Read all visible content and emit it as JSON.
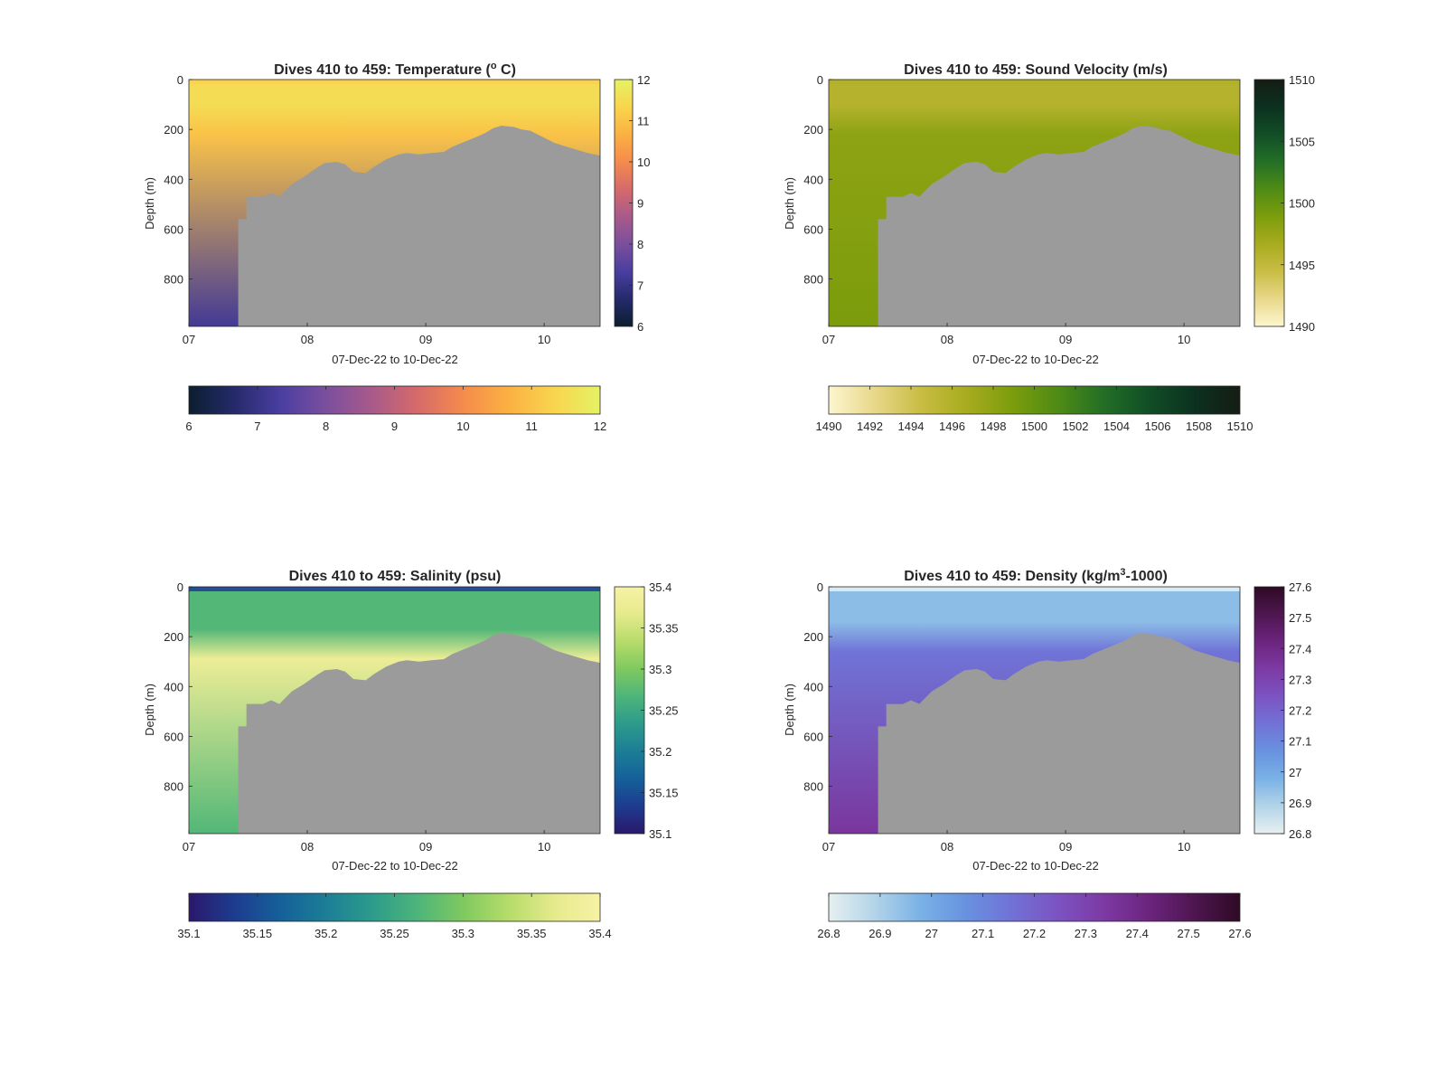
{
  "figure": {
    "background": "#ffffff",
    "mask_color": "#9b9b9b"
  },
  "chart_data": [
    {
      "type": "heatmap",
      "title_main": "Dives 410 to 459: Temperature (",
      "title_sup": "o",
      "title_end": " C)",
      "xlabel": "07-Dec-22 to 10-Dec-22",
      "ylabel": "Depth (m)",
      "x_ticks": [
        "07",
        "08",
        "09",
        "10"
      ],
      "y_ticks": [
        "0",
        "200",
        "400",
        "600",
        "800"
      ],
      "ylim": [
        0,
        990
      ],
      "colorbar_range": [
        6,
        12
      ],
      "colorbar_ticks": [
        "6",
        "7",
        "8",
        "9",
        "10",
        "11",
        "12"
      ],
      "hbar_ticks": [
        "6",
        "7",
        "8",
        "9",
        "10",
        "11",
        "12"
      ],
      "colormap": [
        "#0b1e2f",
        "#252a6b",
        "#4a3ea0",
        "#7a4f9e",
        "#a85a8a",
        "#d66a6a",
        "#f58b4c",
        "#fbb142",
        "#f9d54e",
        "#e5f264"
      ],
      "surface_value": 11.5,
      "surface_depth": 100,
      "mid_value": 11.0,
      "deep_value": 7.2,
      "surface_band": "#fbd24f"
    },
    {
      "type": "heatmap",
      "title_main": "Dives 410 to 459: Sound Velocity (m/s)",
      "title_sup": "",
      "title_end": "",
      "xlabel": "07-Dec-22 to 10-Dec-22",
      "ylabel": "Depth (m)",
      "x_ticks": [
        "07",
        "08",
        "09",
        "10"
      ],
      "y_ticks": [
        "0",
        "200",
        "400",
        "600",
        "800"
      ],
      "ylim": [
        0,
        990
      ],
      "colorbar_range": [
        1490,
        1510
      ],
      "colorbar_ticks": [
        "1490",
        "1495",
        "1500",
        "1505",
        "1510"
      ],
      "hbar_ticks": [
        "1490",
        "1492",
        "1494",
        "1496",
        "1498",
        "1500",
        "1502",
        "1504",
        "1506",
        "1508",
        "1510"
      ],
      "colormap": [
        "#fdf6cf",
        "#e8d88a",
        "#c9bd45",
        "#a8ac1e",
        "#7d9d0c",
        "#4f8b15",
        "#236f26",
        "#114e26",
        "#0c3120",
        "#151c14"
      ],
      "surface_value": 1495.8,
      "surface_depth": 100,
      "mid_value": 1498.0,
      "deep_value": 1499.0,
      "surface_band": "#b2b02a"
    },
    {
      "type": "heatmap",
      "title_main": "Dives 410 to 459: Salinity (psu)",
      "title_sup": "",
      "title_end": "",
      "xlabel": "07-Dec-22 to 10-Dec-22",
      "ylabel": "Depth (m)",
      "x_ticks": [
        "07",
        "08",
        "09",
        "10"
      ],
      "y_ticks": [
        "0",
        "200",
        "400",
        "600",
        "800"
      ],
      "ylim": [
        0,
        990
      ],
      "colorbar_range": [
        35.1,
        35.4
      ],
      "colorbar_ticks": [
        "35.1",
        "35.15",
        "35.2",
        "35.25",
        "35.3",
        "35.35",
        "35.4"
      ],
      "hbar_ticks": [
        "35.1",
        "35.15",
        "35.2",
        "35.25",
        "35.3",
        "35.35",
        "35.4"
      ],
      "colormap": [
        "#2a186c",
        "#1d3c8f",
        "#15609a",
        "#1c7e96",
        "#2c9b8b",
        "#4db57a",
        "#7fc95f",
        "#b6dc6a",
        "#e6ea8c",
        "#f7f2a6"
      ],
      "surface_value": 35.27,
      "surface_depth": 170,
      "mid_value": 35.38,
      "deep_value": 35.27,
      "surface_band": "#1e3c9a"
    },
    {
      "type": "heatmap",
      "title_main": "Dives 410 to 459: Density (kg/m",
      "title_sup": "3",
      "title_end": "-1000)",
      "xlabel": "07-Dec-22 to 10-Dec-22",
      "ylabel": "Depth (m)",
      "x_ticks": [
        "07",
        "08",
        "09",
        "10"
      ],
      "y_ticks": [
        "0",
        "200",
        "400",
        "600",
        "800"
      ],
      "ylim": [
        0,
        990
      ],
      "colorbar_range": [
        26.8,
        27.6
      ],
      "colorbar_ticks": [
        "27.6",
        "27.5",
        "27.4",
        "27.3",
        "27.2",
        "27.1",
        "27",
        "26.9",
        "26.8"
      ],
      "hbar_ticks": [
        "26.8",
        "26.9",
        "27",
        "27.1",
        "27.2",
        "27.3",
        "27.4",
        "27.5",
        "27.6"
      ],
      "colormap": [
        "#e6f0f0",
        "#b3d4e8",
        "#7ab2e6",
        "#6892e0",
        "#7172d6",
        "#7c53c2",
        "#7d3aa4",
        "#6c247e",
        "#4e1650",
        "#2e0a24"
      ],
      "surface_value": 26.95,
      "surface_depth": 140,
      "mid_value": 27.15,
      "deep_value": 27.35,
      "surface_band": "#e8f2f2"
    }
  ]
}
